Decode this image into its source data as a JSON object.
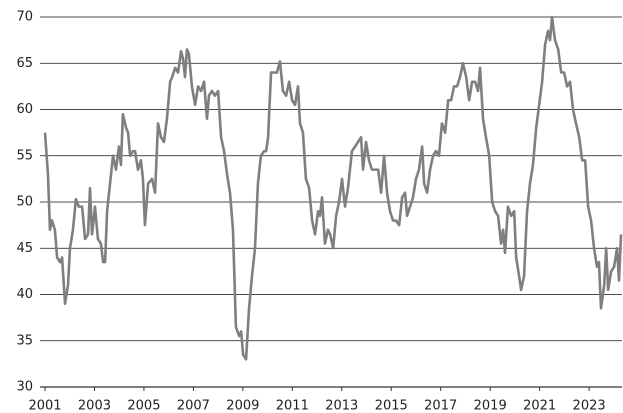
{
  "chart_data": {
    "type": "line",
    "x": [
      2001.0,
      2001.12,
      2001.2,
      2001.28,
      2001.4,
      2001.49,
      2001.61,
      2001.69,
      2001.81,
      2001.93,
      2002.01,
      2002.13,
      2002.25,
      2002.37,
      2002.5,
      2002.62,
      2002.74,
      2002.82,
      2002.9,
      2003.02,
      2003.14,
      2003.26,
      2003.35,
      2003.43,
      2003.51,
      2003.63,
      2003.75,
      2003.87,
      2003.99,
      2004.07,
      2004.15,
      2004.28,
      2004.36,
      2004.44,
      2004.56,
      2004.64,
      2004.76,
      2004.88,
      2004.96,
      2005.04,
      2005.17,
      2005.33,
      2005.45,
      2005.57,
      2005.69,
      2005.81,
      2005.93,
      2006.06,
      2006.14,
      2006.26,
      2006.38,
      2006.5,
      2006.58,
      2006.66,
      2006.74,
      2006.82,
      2006.94,
      2007.07,
      2007.19,
      2007.31,
      2007.43,
      2007.55,
      2007.63,
      2007.75,
      2007.87,
      2008.0,
      2008.12,
      2008.24,
      2008.36,
      2008.48,
      2008.6,
      2008.72,
      2008.85,
      2008.93,
      2009.01,
      2009.13,
      2009.25,
      2009.37,
      2009.49,
      2009.61,
      2009.73,
      2009.86,
      2009.94,
      2010.02,
      2010.14,
      2010.26,
      2010.38,
      2010.5,
      2010.62,
      2010.75,
      2010.87,
      2010.99,
      2011.11,
      2011.23,
      2011.31,
      2011.43,
      2011.55,
      2011.68,
      2011.8,
      2011.92,
      2012.04,
      2012.12,
      2012.2,
      2012.32,
      2012.44,
      2012.53,
      2012.65,
      2012.77,
      2012.89,
      2013.01,
      2013.13,
      2013.25,
      2013.41,
      2013.54,
      2013.66,
      2013.78,
      2013.86,
      2013.98,
      2014.1,
      2014.22,
      2014.35,
      2014.47,
      2014.59,
      2014.71,
      2014.83,
      2014.95,
      2015.07,
      2015.19,
      2015.32,
      2015.44,
      2015.56,
      2015.64,
      2015.76,
      2015.88,
      2016.0,
      2016.12,
      2016.25,
      2016.33,
      2016.45,
      2016.57,
      2016.69,
      2016.81,
      2016.93,
      2017.05,
      2017.18,
      2017.3,
      2017.42,
      2017.54,
      2017.66,
      2017.78,
      2017.9,
      2018.03,
      2018.15,
      2018.27,
      2018.39,
      2018.51,
      2018.59,
      2018.71,
      2018.83,
      2018.96,
      2019.08,
      2019.2,
      2019.32,
      2019.44,
      2019.52,
      2019.6,
      2019.72,
      2019.85,
      2019.97,
      2020.05,
      2020.17,
      2020.25,
      2020.37,
      2020.49,
      2020.61,
      2020.73,
      2020.86,
      2020.98,
      2021.1,
      2021.22,
      2021.34,
      2021.42,
      2021.5,
      2021.62,
      2021.75,
      2021.87,
      2021.99,
      2022.11,
      2022.23,
      2022.35,
      2022.47,
      2022.6,
      2022.72,
      2022.84,
      2022.96,
      2023.08,
      2023.2,
      2023.32,
      2023.4,
      2023.48,
      2023.61,
      2023.69,
      2023.77,
      2023.89,
      2024.01,
      2024.13,
      2024.21,
      2024.29
    ],
    "series": [
      {
        "color": "#7f7f7f",
        "values": [
          57.5,
          53,
          47,
          48,
          47,
          44,
          43.5,
          44,
          39,
          41,
          45,
          47,
          50.3,
          49.5,
          49.5,
          46,
          46.5,
          51.5,
          46.5,
          49.5,
          46,
          45.5,
          43.5,
          43.5,
          49,
          52,
          55,
          53.5,
          56,
          54,
          59.5,
          58,
          57.5,
          55,
          55.5,
          55.5,
          53.5,
          54.5,
          52.5,
          47.5,
          52,
          52.5,
          51,
          58.5,
          57,
          56.5,
          59,
          63,
          63.5,
          64.5,
          64,
          66.3,
          65.5,
          63.5,
          66.5,
          66,
          62.5,
          60.5,
          62.5,
          62,
          63,
          59,
          61.5,
          62,
          61.5,
          62,
          57,
          55.5,
          53,
          51,
          47,
          36.5,
          35.5,
          36,
          33.5,
          33,
          38.5,
          42,
          45,
          52,
          55,
          55.5,
          55.5,
          57,
          64,
          64,
          64,
          65.2,
          62,
          61.5,
          63,
          61,
          60.5,
          62.5,
          58.5,
          57.5,
          52.5,
          51.5,
          48,
          46.5,
          49,
          48.5,
          50.5,
          45.5,
          47,
          46.5,
          45,
          48.5,
          50,
          52.5,
          49.5,
          51.5,
          55.5,
          56,
          56.5,
          57,
          53.5,
          56.5,
          54.5,
          53.5,
          53.5,
          53.5,
          51,
          55,
          51,
          49,
          48,
          48,
          47.5,
          50.5,
          51,
          48.5,
          49.5,
          50.5,
          52.5,
          53.5,
          56,
          52,
          51,
          53.5,
          55,
          55.5,
          55,
          58.5,
          57.5,
          61,
          61,
          62.5,
          62.5,
          63.5,
          65,
          63.5,
          61,
          63,
          63,
          62,
          64.5,
          59,
          57,
          55,
          50,
          49,
          48.5,
          45.5,
          47,
          44.5,
          49.5,
          48.5,
          49,
          44,
          42,
          40.5,
          42,
          49,
          52,
          54,
          58,
          60.5,
          63,
          67,
          68.5,
          67.5,
          70,
          67.5,
          66.5,
          64,
          64,
          62.5,
          63,
          60,
          58.5,
          57,
          54.5,
          54.5,
          49.5,
          48,
          45,
          43,
          43.5,
          38.5,
          41,
          45,
          40.5,
          42.5,
          43,
          45,
          41.5,
          46.5
        ]
      }
    ],
    "xlim": [
      2001,
      2024.33
    ],
    "xticks": [
      2001,
      2003,
      2005,
      2007,
      2009,
      2011,
      2013,
      2015,
      2017,
      2019,
      2021,
      2023
    ],
    "ylim": [
      30,
      70
    ],
    "yticks": [
      30,
      35,
      40,
      45,
      50,
      55,
      60,
      65,
      70
    ],
    "grid": true
  }
}
